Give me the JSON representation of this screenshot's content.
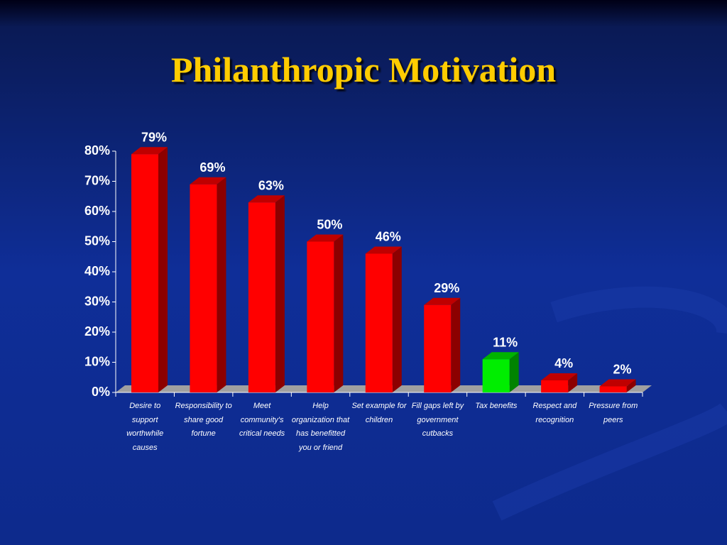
{
  "chart_data": {
    "type": "bar3d",
    "title": "Philanthropic Motivation",
    "categories": [
      "Desire to support worthwhile causes",
      "Responsibility to share good fortune",
      "Meet community's critical needs",
      "Help organization that has benefitted you or friend",
      "Set example for children",
      "Fill gaps left by government cutbacks",
      "Tax benefits",
      "Respect and recognition",
      "Pressure from peers"
    ],
    "values": [
      79,
      69,
      63,
      50,
      46,
      29,
      11,
      4,
      2
    ],
    "value_labels": [
      "79%",
      "69%",
      "63%",
      "50%",
      "46%",
      "29%",
      "11%",
      "4%",
      "2%"
    ],
    "colors": [
      "#ff0000",
      "#ff0000",
      "#ff0000",
      "#ff0000",
      "#ff0000",
      "#ff0000",
      "#00ee00",
      "#ff0000",
      "#ff0000"
    ],
    "ylim": [
      0,
      80
    ],
    "yticks": [
      {
        "value": 0,
        "label": "0%"
      },
      {
        "value": 10,
        "label": "10%"
      },
      {
        "value": 20,
        "label": "20%"
      },
      {
        "value": 30,
        "label": "30%"
      },
      {
        "value": 40,
        "label": "40%"
      },
      {
        "value": 50,
        "label": "50%"
      },
      {
        "value": 60,
        "label": "60%"
      },
      {
        "value": 70,
        "label": "70%"
      },
      {
        "value": 80,
        "label": "80%"
      }
    ]
  }
}
